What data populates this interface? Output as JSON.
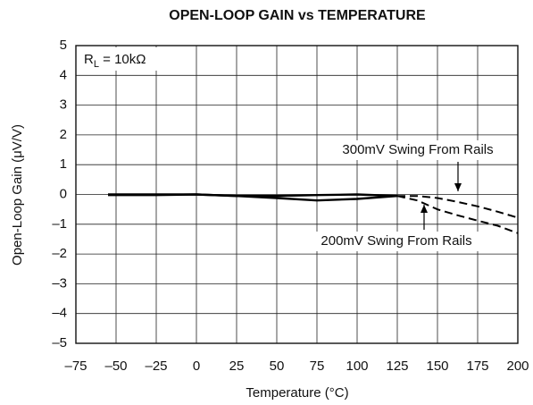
{
  "chart_data": {
    "type": "line",
    "title": "OPEN-LOOP GAIN vs TEMPERATURE",
    "x_label": "Temperature (°C)",
    "y_label": "Open-Loop Gain (μV/V)",
    "annotation": [
      "R",
      "L",
      " = 10kΩ"
    ],
    "x": [
      -55,
      -25,
      0,
      25,
      50,
      75,
      100,
      125,
      137.5,
      150,
      162.5,
      175,
      187.5,
      200
    ],
    "series": [
      {
        "name": "300mV Swing From Rails",
        "color": "#000000",
        "values": [
          -0.02,
          -0.02,
          0,
          -0.05,
          -0.12,
          -0.2,
          -0.15,
          -0.05,
          -0.05,
          -0.12,
          -0.25,
          -0.4,
          -0.58,
          -0.78
        ]
      },
      {
        "name": "200mV Swing From Rails",
        "color": "#000000",
        "values": [
          0,
          0,
          0,
          -0.05,
          -0.05,
          -0.02,
          0,
          -0.05,
          -0.2,
          -0.5,
          -0.7,
          -0.88,
          -1.05,
          -1.3
        ]
      }
    ],
    "dashed_after": 125,
    "xlim": [
      -75,
      200
    ],
    "xticks": [
      {
        "value": -75,
        "label": "–75"
      },
      {
        "value": -50,
        "label": "–50"
      },
      {
        "value": -25,
        "label": "–25"
      },
      0,
      25,
      50,
      75,
      100,
      125,
      150,
      175,
      200
    ],
    "ylim": [
      -5,
      5
    ],
    "yticks": [
      {
        "value": -5,
        "label": "–5"
      },
      {
        "value": -4,
        "label": "–4"
      },
      {
        "value": -3,
        "label": "–3"
      },
      {
        "value": -2,
        "label": "–2"
      },
      {
        "value": -1,
        "label": "–1"
      },
      0,
      1,
      2,
      3,
      4,
      5
    ],
    "grid": true
  }
}
